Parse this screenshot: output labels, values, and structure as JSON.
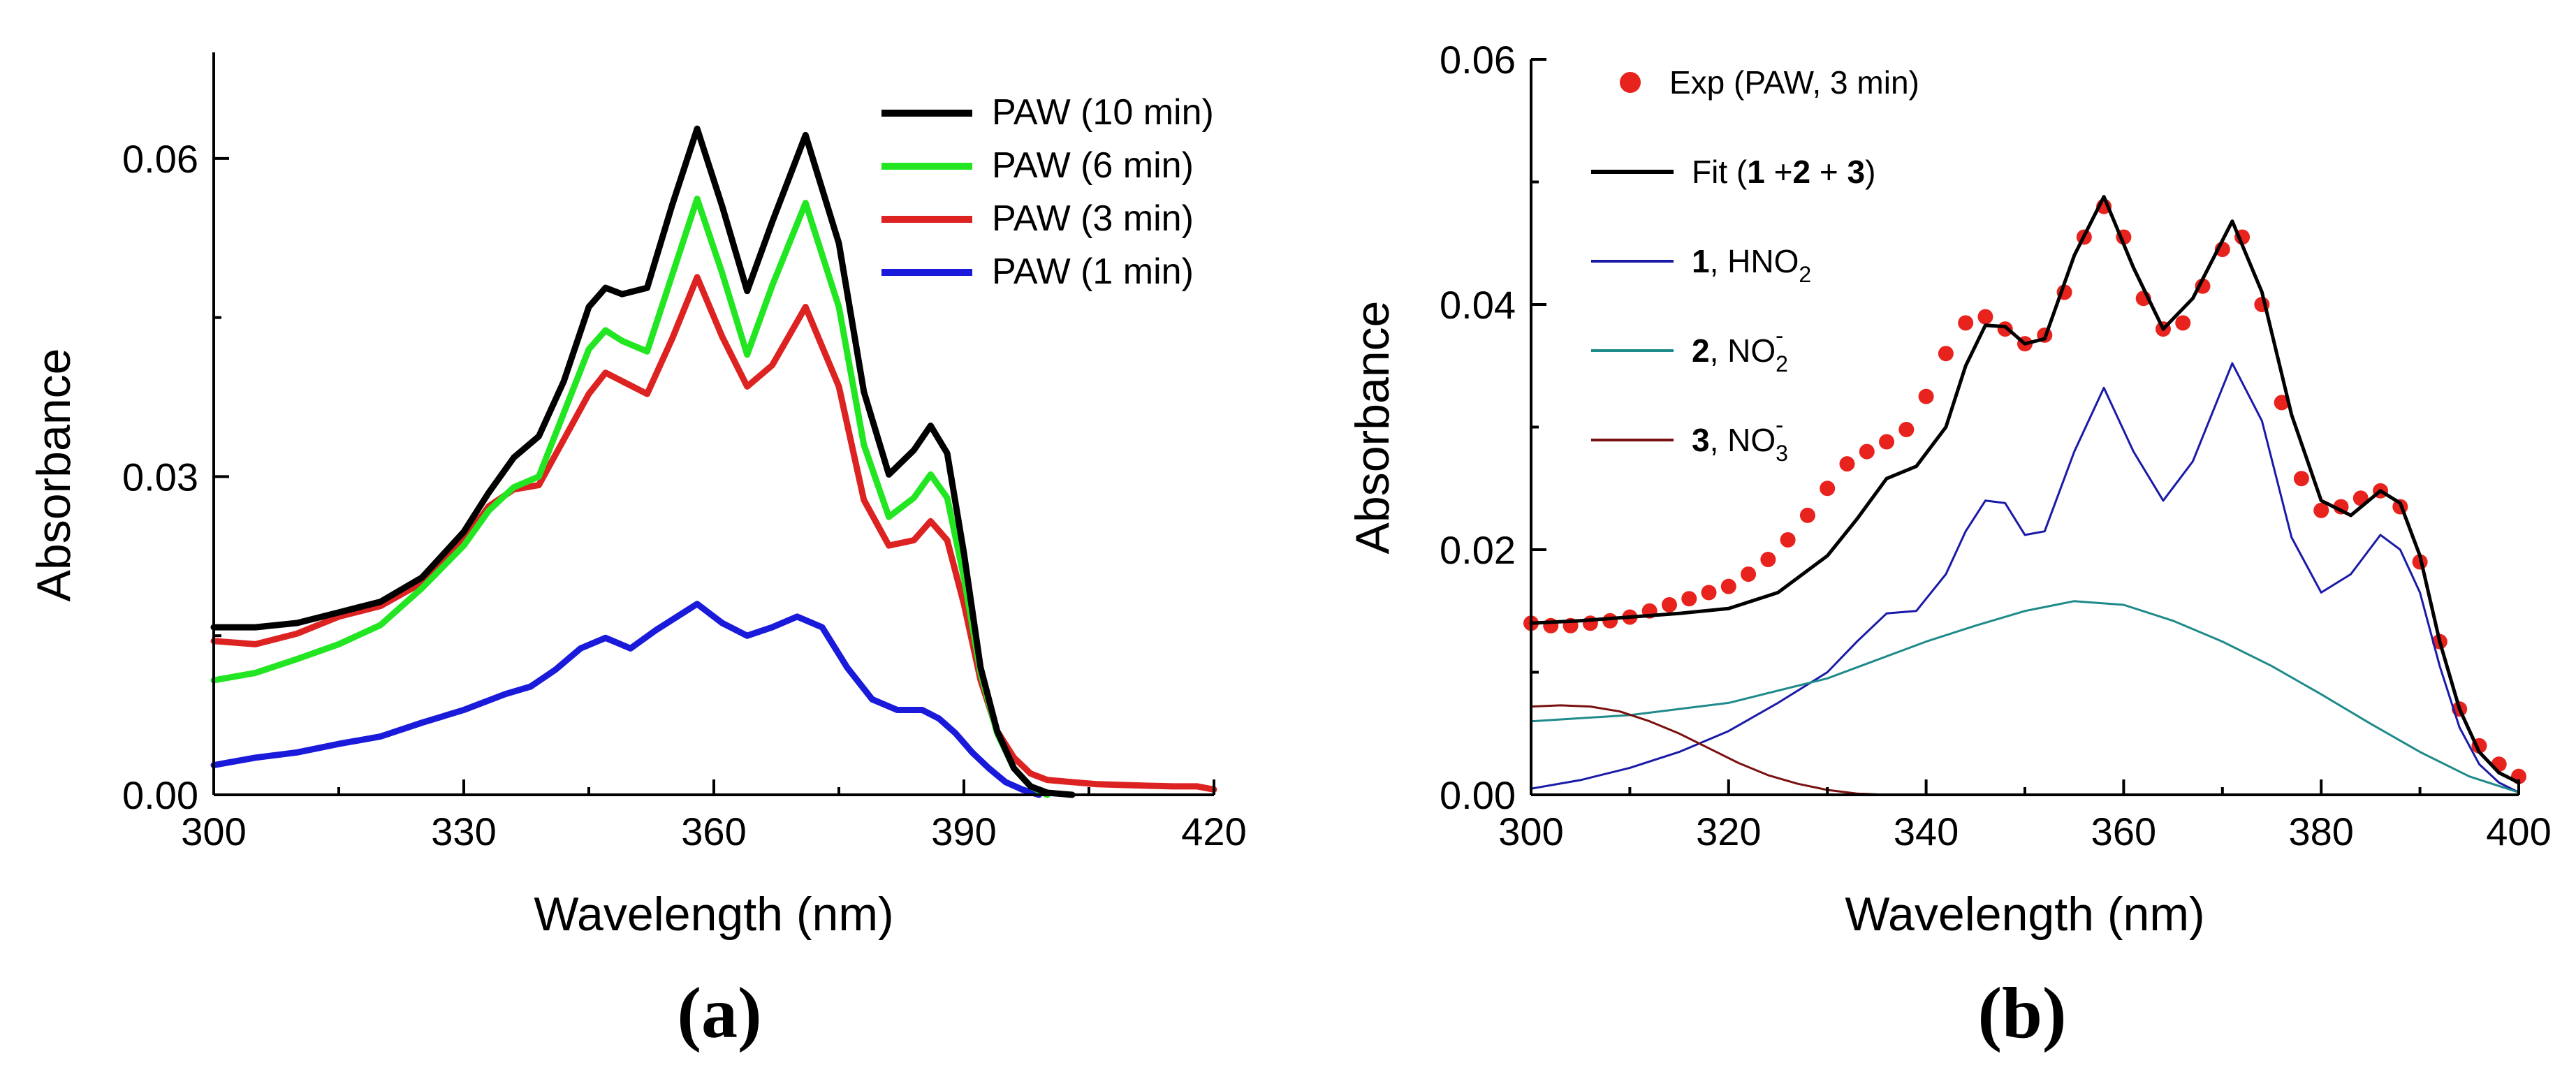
{
  "chart_data": [
    {
      "type": "line",
      "panel_label": "(a)",
      "xlabel": "Wavelength (nm)",
      "ylabel": "Absorbance",
      "xlim": [
        300,
        420
      ],
      "ylim": [
        0,
        0.07
      ],
      "xticks": [
        300,
        330,
        360,
        390,
        420
      ],
      "xtick_labels": [
        "300",
        "330",
        "360",
        "390",
        "420"
      ],
      "yticks": [
        0,
        0.03,
        0.06
      ],
      "ytick_labels": [
        "0.00",
        "0.03",
        "0.06"
      ],
      "legend_position": "top-right",
      "series": [
        {
          "name": "PAW (10 min)",
          "color": "#000000",
          "style": "line",
          "x": [
            300,
            305,
            310,
            315,
            320,
            325,
            330,
            333,
            336,
            339,
            342,
            345,
            347,
            349,
            352,
            355,
            358,
            361,
            364,
            367,
            371,
            375,
            378,
            381,
            384,
            386,
            388,
            390,
            392,
            394,
            396,
            398,
            400,
            403
          ],
          "y": [
            0.0158,
            0.0158,
            0.0162,
            0.0172,
            0.0182,
            0.0205,
            0.0248,
            0.0285,
            0.0318,
            0.0338,
            0.039,
            0.046,
            0.0478,
            0.0472,
            0.0478,
            0.0556,
            0.0628,
            0.0555,
            0.0475,
            0.054,
            0.0622,
            0.052,
            0.038,
            0.0302,
            0.0325,
            0.0348,
            0.0322,
            0.0228,
            0.012,
            0.006,
            0.0025,
            0.0008,
            0.0002,
            0.0
          ]
        },
        {
          "name": "PAW (6 min)",
          "color": "#22e622",
          "style": "line",
          "x": [
            300,
            305,
            310,
            315,
            320,
            325,
            330,
            333,
            336,
            339,
            342,
            345,
            347,
            349,
            352,
            355,
            358,
            361,
            364,
            367,
            371,
            375,
            378,
            381,
            384,
            386,
            388,
            390,
            392,
            394,
            396,
            398,
            400
          ],
          "y": [
            0.0108,
            0.0115,
            0.0128,
            0.0142,
            0.016,
            0.0195,
            0.0235,
            0.0268,
            0.029,
            0.03,
            0.036,
            0.042,
            0.0438,
            0.0428,
            0.0418,
            0.049,
            0.0562,
            0.0492,
            0.0415,
            0.048,
            0.0558,
            0.046,
            0.033,
            0.0262,
            0.028,
            0.0302,
            0.028,
            0.0205,
            0.0115,
            0.0058,
            0.0025,
            0.0008,
            0.0
          ]
        },
        {
          "name": "PAW (3 min)",
          "color": "#dd2222",
          "style": "line",
          "x": [
            300,
            305,
            310,
            315,
            320,
            325,
            330,
            333,
            336,
            339,
            342,
            345,
            347,
            349,
            352,
            355,
            358,
            361,
            364,
            367,
            371,
            375,
            378,
            381,
            384,
            386,
            388,
            390,
            392,
            394,
            396,
            398,
            400,
            403,
            406,
            410,
            415,
            418,
            420
          ],
          "y": [
            0.0145,
            0.0142,
            0.0152,
            0.0168,
            0.0178,
            0.02,
            0.024,
            0.0272,
            0.0288,
            0.0292,
            0.0335,
            0.0378,
            0.0398,
            0.039,
            0.0378,
            0.043,
            0.0488,
            0.0432,
            0.0385,
            0.0405,
            0.046,
            0.0385,
            0.0278,
            0.0235,
            0.024,
            0.0258,
            0.024,
            0.018,
            0.0108,
            0.006,
            0.0035,
            0.002,
            0.0014,
            0.0012,
            0.001,
            0.0009,
            0.0008,
            0.0008,
            0.0005
          ]
        },
        {
          "name": "PAW (1 min)",
          "color": "#1a1adb",
          "style": "line",
          "x": [
            300,
            305,
            310,
            315,
            320,
            325,
            330,
            335,
            338,
            341,
            344,
            347,
            350,
            353,
            356,
            358,
            361,
            364,
            367,
            370,
            373,
            376,
            379,
            382,
            385,
            387,
            389,
            391,
            393,
            395,
            397,
            399
          ],
          "y": [
            0.0028,
            0.0035,
            0.004,
            0.0048,
            0.0055,
            0.0068,
            0.008,
            0.0095,
            0.0102,
            0.0118,
            0.0138,
            0.0148,
            0.0138,
            0.0155,
            0.017,
            0.018,
            0.0162,
            0.015,
            0.0158,
            0.0168,
            0.0158,
            0.012,
            0.009,
            0.008,
            0.008,
            0.0072,
            0.0058,
            0.004,
            0.0025,
            0.0012,
            0.0005,
            0.0
          ]
        }
      ]
    },
    {
      "type": "line",
      "panel_label": "(b)",
      "xlabel": "Wavelength (nm)",
      "ylabel": "Absorbance",
      "xlim": [
        300,
        400
      ],
      "ylim": [
        0,
        0.06
      ],
      "xticks": [
        300,
        320,
        340,
        360,
        380,
        400
      ],
      "xtick_labels": [
        "300",
        "320",
        "340",
        "360",
        "380",
        "400"
      ],
      "yticks": [
        0,
        0.02,
        0.04,
        0.06
      ],
      "ytick_labels": [
        "0.00",
        "0.02",
        "0.04",
        "0.06"
      ],
      "legend_position": "top-left",
      "series": [
        {
          "name": "Exp (PAW, 3 min)",
          "color": "#e8221d",
          "style": "scatter",
          "x": [
            300,
            302,
            304,
            306,
            308,
            310,
            312,
            314,
            316,
            318,
            320,
            322,
            324,
            326,
            328,
            330,
            332,
            334,
            336,
            338,
            340,
            342,
            344,
            346,
            348,
            350,
            352,
            354,
            356,
            358,
            360,
            362,
            364,
            366,
            368,
            370,
            372,
            374,
            376,
            378,
            380,
            382,
            384,
            386,
            388,
            390,
            392,
            394,
            396,
            398,
            400
          ],
          "y": [
            0.014,
            0.0138,
            0.0138,
            0.014,
            0.0142,
            0.0145,
            0.015,
            0.0155,
            0.016,
            0.0165,
            0.017,
            0.018,
            0.0192,
            0.0208,
            0.0228,
            0.025,
            0.027,
            0.028,
            0.0288,
            0.0298,
            0.0325,
            0.036,
            0.0385,
            0.039,
            0.038,
            0.0368,
            0.0375,
            0.041,
            0.0455,
            0.048,
            0.0455,
            0.0405,
            0.038,
            0.0385,
            0.0415,
            0.0445,
            0.0455,
            0.04,
            0.032,
            0.0258,
            0.0232,
            0.0235,
            0.0242,
            0.0248,
            0.0235,
            0.019,
            0.0125,
            0.007,
            0.004,
            0.0025,
            0.0015
          ]
        },
        {
          "name": "Fit (1 +2 + 3)",
          "color": "#000000",
          "style": "line",
          "x": [
            300,
            305,
            310,
            315,
            320,
            325,
            330,
            333,
            336,
            339,
            342,
            344,
            346,
            348,
            350,
            352,
            355,
            358,
            361,
            364,
            367,
            371,
            374,
            377,
            380,
            383,
            386,
            388,
            390,
            392,
            394,
            396,
            398,
            400
          ],
          "y": [
            0.014,
            0.0142,
            0.0145,
            0.0148,
            0.0152,
            0.0165,
            0.0195,
            0.0225,
            0.0258,
            0.0268,
            0.03,
            0.035,
            0.0383,
            0.0382,
            0.0368,
            0.0372,
            0.044,
            0.0488,
            0.043,
            0.038,
            0.0405,
            0.0468,
            0.041,
            0.031,
            0.024,
            0.0228,
            0.0248,
            0.0238,
            0.0195,
            0.0125,
            0.007,
            0.0035,
            0.0018,
            0.001
          ]
        },
        {
          "name": "1, HNO2",
          "color": "#1a1aa8",
          "style": "line",
          "x": [
            300,
            305,
            310,
            315,
            320,
            325,
            330,
            333,
            336,
            339,
            342,
            344,
            346,
            348,
            350,
            352,
            355,
            358,
            361,
            364,
            367,
            371,
            374,
            377,
            380,
            383,
            386,
            388,
            390,
            392,
            394,
            396,
            398,
            400
          ],
          "y": [
            0.0005,
            0.0012,
            0.0022,
            0.0035,
            0.0052,
            0.0075,
            0.01,
            0.0125,
            0.0148,
            0.015,
            0.018,
            0.0215,
            0.024,
            0.0238,
            0.0212,
            0.0215,
            0.028,
            0.0332,
            0.028,
            0.024,
            0.0272,
            0.0352,
            0.0305,
            0.021,
            0.0165,
            0.018,
            0.0212,
            0.02,
            0.0165,
            0.0105,
            0.0055,
            0.0025,
            0.001,
            0.0002
          ]
        },
        {
          "name": "2, NO2-",
          "color": "#1f8a8a",
          "style": "line",
          "x": [
            300,
            310,
            320,
            330,
            340,
            345,
            350,
            355,
            360,
            365,
            370,
            375,
            380,
            385,
            390,
            395,
            400
          ],
          "y": [
            0.006,
            0.0065,
            0.0075,
            0.0095,
            0.0125,
            0.0138,
            0.015,
            0.0158,
            0.0155,
            0.0142,
            0.0125,
            0.0105,
            0.0082,
            0.0058,
            0.0035,
            0.0015,
            0.0002
          ]
        },
        {
          "name": "3, NO3-",
          "color": "#7a1010",
          "style": "line",
          "x": [
            300,
            303,
            306,
            309,
            312,
            315,
            318,
            321,
            324,
            327,
            330,
            333,
            336
          ],
          "y": [
            0.0072,
            0.0073,
            0.0072,
            0.0068,
            0.006,
            0.005,
            0.0038,
            0.0026,
            0.0016,
            0.0009,
            0.0004,
            0.0001,
            0.0
          ]
        }
      ]
    }
  ],
  "legend_a": [
    {
      "label": "PAW (10 min)",
      "color": "#000000"
    },
    {
      "label": "PAW (6 min)",
      "color": "#22e622"
    },
    {
      "label": "PAW (3 min)",
      "color": "#dd2222"
    },
    {
      "label": "PAW (1 min)",
      "color": "#1a1adb"
    }
  ],
  "legend_b": {
    "exp": {
      "label": "Exp (PAW, 3 min)",
      "color": "#e8221d"
    },
    "fit": {
      "prefix": "Fit (",
      "n1": "1",
      "mid1": " +",
      "n2": "2",
      "mid2": " + ",
      "n3": "3",
      "suffix": ")",
      "color": "#000000"
    },
    "hno2": {
      "num": "1",
      "text": ", HNO",
      "sub": "2",
      "color": "#1a1aa8"
    },
    "no2": {
      "num": "2",
      "text": ", NO",
      "sub": "2",
      "sup": "-",
      "color": "#1f8a8a"
    },
    "no3": {
      "num": "3",
      "text": ", NO",
      "sub": "3",
      "sup": "-",
      "color": "#7a1010"
    }
  }
}
